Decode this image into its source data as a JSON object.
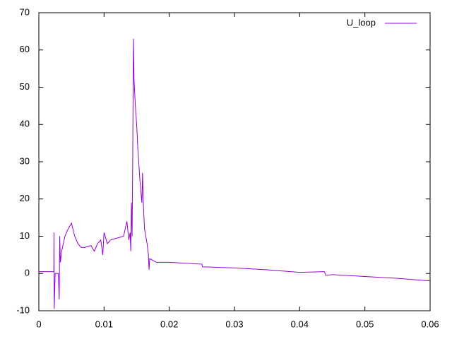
{
  "chart_data": {
    "type": "line",
    "x": [
      0,
      0.0023,
      0.00232,
      0.00236,
      0.0025,
      0.003,
      0.00312,
      0.0032,
      0.0033,
      0.0035,
      0.004,
      0.0045,
      0.005,
      0.0055,
      0.006,
      0.0065,
      0.007,
      0.008,
      0.0085,
      0.009,
      0.0095,
      0.0098,
      0.01,
      0.0105,
      0.011,
      0.012,
      0.013,
      0.0135,
      0.0138,
      0.014,
      0.0141,
      0.0142,
      0.0143,
      0.0144,
      0.0145,
      0.0146,
      0.0148,
      0.015,
      0.0152,
      0.0155,
      0.0158,
      0.0159,
      0.016,
      0.0162,
      0.0164,
      0.0166,
      0.0168,
      0.0169,
      0.017,
      0.0175,
      0.018,
      0.02,
      0.025,
      0.0251,
      0.03,
      0.035,
      0.04,
      0.0438,
      0.044,
      0.045,
      0.05,
      0.055,
      0.06
    ],
    "series": [
      {
        "name": "U_loop",
        "color": "#9400d3",
        "values": [
          0.5,
          0.5,
          11,
          -9.5,
          0,
          0,
          -7,
          10,
          3,
          6,
          10,
          12,
          13.5,
          10,
          8,
          7,
          7,
          7.5,
          6,
          8,
          9,
          5,
          11,
          8,
          9,
          9.5,
          10,
          14,
          9,
          11,
          6,
          19,
          10,
          31,
          63,
          52,
          45,
          40,
          33,
          25,
          19,
          27,
          20,
          12,
          10,
          8,
          5,
          1,
          4,
          3.5,
          3,
          3,
          2.5,
          1.8,
          1.5,
          1,
          0.3,
          0.5,
          -0.5,
          -0.3,
          -0.8,
          -1.3,
          -2
        ]
      }
    ],
    "xlim": [
      0,
      0.06
    ],
    "xticks": [
      0,
      0.01,
      0.02,
      0.03,
      0.04,
      0.05,
      0.06
    ],
    "ylim": [
      -10,
      70
    ],
    "yticks": [
      -10,
      0,
      10,
      20,
      30,
      40,
      50,
      60,
      70
    ],
    "grid": false,
    "legend": "top-right"
  }
}
